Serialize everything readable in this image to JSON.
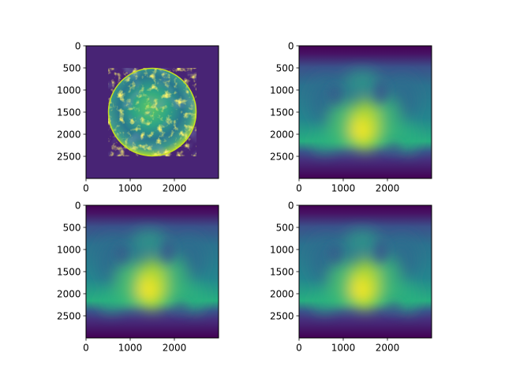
{
  "chart_data": [
    {
      "type": "heatmap",
      "image": "moon-photograph",
      "colormap": "viridis",
      "xlim": [
        0,
        3000
      ],
      "ylim": [
        3000,
        0
      ],
      "xticks": [
        0,
        1000,
        2000
      ],
      "yticks": [
        0,
        500,
        1000,
        1500,
        2000,
        2500
      ],
      "xtick_labels": [
        "0",
        "1000",
        "2000"
      ],
      "ytick_labels": [
        "0",
        "500",
        "1000",
        "1500",
        "2000",
        "2500"
      ],
      "title": "",
      "xlabel": "",
      "ylabel": ""
    },
    {
      "type": "heatmap",
      "image": "blurred-moon",
      "colormap": "viridis",
      "xlim": [
        0,
        3000
      ],
      "ylim": [
        3000,
        0
      ],
      "xticks": [
        0,
        1000,
        2000
      ],
      "yticks": [
        0,
        500,
        1000,
        1500,
        2000,
        2500
      ],
      "xtick_labels": [
        "0",
        "1000",
        "2000"
      ],
      "ytick_labels": [
        "0",
        "500",
        "1000",
        "1500",
        "2000",
        "2500"
      ],
      "title": "",
      "xlabel": "",
      "ylabel": ""
    },
    {
      "type": "heatmap",
      "image": "blurred-moon",
      "colormap": "viridis",
      "xlim": [
        0,
        3000
      ],
      "ylim": [
        3000,
        0
      ],
      "xticks": [
        0,
        1000,
        2000
      ],
      "yticks": [
        0,
        500,
        1000,
        1500,
        2000,
        2500
      ],
      "xtick_labels": [
        "0",
        "1000",
        "2000"
      ],
      "ytick_labels": [
        "0",
        "500",
        "1000",
        "1500",
        "2000",
        "2500"
      ],
      "title": "",
      "xlabel": "",
      "ylabel": ""
    },
    {
      "type": "heatmap",
      "image": "blurred-moon",
      "colormap": "viridis",
      "xlim": [
        0,
        3000
      ],
      "ylim": [
        3000,
        0
      ],
      "xticks": [
        0,
        1000,
        2000
      ],
      "yticks": [
        0,
        500,
        1000,
        1500,
        2000,
        2500
      ],
      "xtick_labels": [
        "0",
        "1000",
        "2000"
      ],
      "ytick_labels": [
        "0",
        "500",
        "1000",
        "1500",
        "2000",
        "2500"
      ],
      "title": "",
      "xlabel": "",
      "ylabel": ""
    }
  ],
  "colors": {
    "viridis_dark": "#440154",
    "viridis_bg": "#482475",
    "viridis_mid": "#2a788e",
    "viridis_green": "#22a884",
    "viridis_light": "#7ad151",
    "viridis_yellow": "#fde725"
  }
}
